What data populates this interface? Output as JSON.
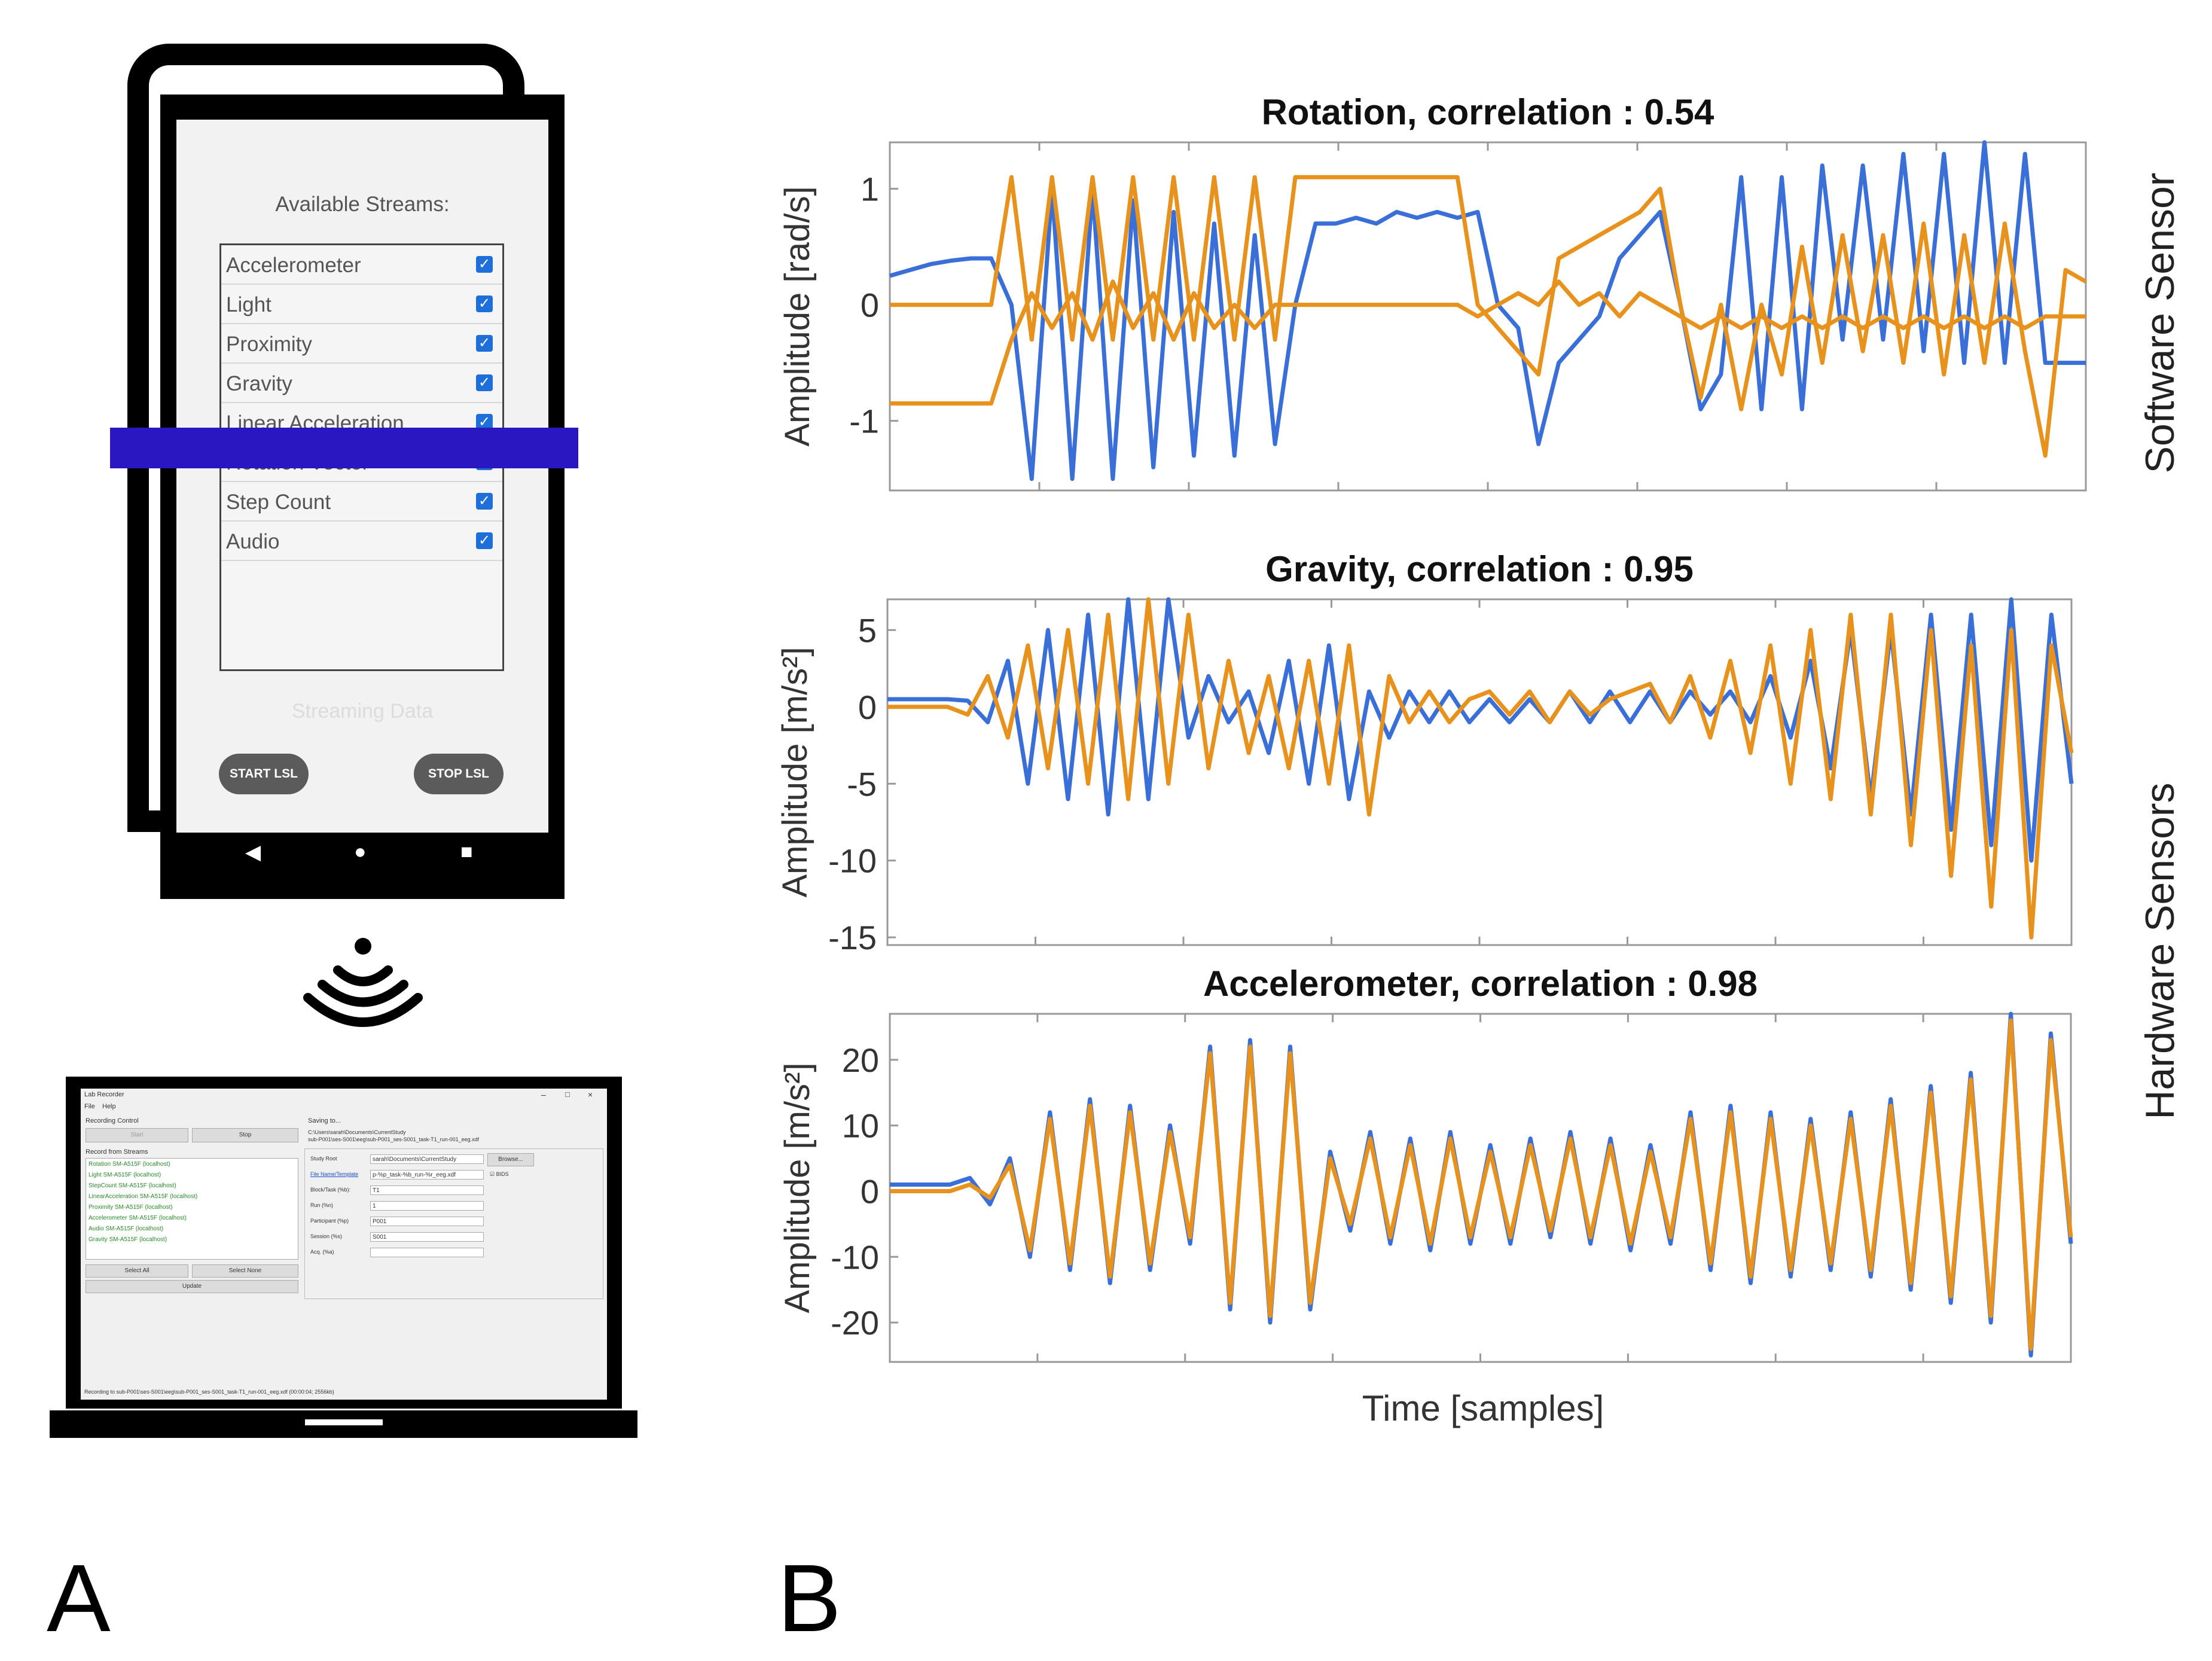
{
  "phone": {
    "title": "Available Streams:",
    "streams": [
      {
        "label": "Accelerometer",
        "checked": true
      },
      {
        "label": "Light",
        "checked": true
      },
      {
        "label": "Proximity",
        "checked": true
      },
      {
        "label": "Gravity",
        "checked": true
      },
      {
        "label": "Linear Acceleration",
        "checked": true
      },
      {
        "label": "Rotation Vector",
        "checked": true
      },
      {
        "label": "Step Count",
        "checked": true
      },
      {
        "label": "Audio",
        "checked": true
      }
    ],
    "status": "Streaming Data",
    "start_button": "START LSL",
    "stop_button": "STOP LSL",
    "nav_back": "◀",
    "nav_home": "●",
    "nav_recent": "■"
  },
  "lab_recorder": {
    "title": "Lab Recorder",
    "menu": [
      "File",
      "Help"
    ],
    "recording_control": "Recording Control",
    "start": "Start",
    "stop": "Stop",
    "record_from_streams": "Record from Streams",
    "streams": [
      "Rotation SM-A515F (localhost)",
      "Light SM-A515F (localhost)",
      "StepCount SM-A515F (localhost)",
      "LinearAcceleration SM-A515F (localhost)",
      "Proximity SM-A515F (localhost)",
      "Accelerometer SM-A515F (localhost)",
      "Audio SM-A515F (localhost)",
      "Gravity SM-A515F (localhost)"
    ],
    "select_all": "Select All",
    "select_none": "Select None",
    "update": "Update",
    "saving_to": "Saving to...",
    "save_path_1": "C:\\Users\\sarah\\Documents\\CurrentStudy",
    "save_path_2": "sub-P001\\ses-S001\\eeg\\sub-P001_ses-S001_task-T1_run-001_eeg.xdf",
    "study_root_label": "Study Root",
    "study_root_value": "sarah\\Documents\\CurrentStudy",
    "browse": "Browse...",
    "file_template_label": "File Name/Template",
    "file_template_value": "p-%p_task-%b_run-%r_eeg.xdf",
    "bids": "BIDS",
    "block_label": "Block/Task (%b):",
    "block_value": "T1",
    "run_label": "Run (%n)",
    "run_value": "1",
    "participant_label": "Participant (%p)",
    "participant_value": "P001",
    "session_label": "Session (%s)",
    "session_value": "S001",
    "acq_label": "Acq. (%a)",
    "acq_value": "",
    "status_bar": "Recording to sub-P001\\ses-S001\\eeg\\sub-P001_ses-S001_task-T1_run-001_eeg.xdf (00:00:04; 2556kb)"
  },
  "panel_labels": {
    "a": "A",
    "b": "B"
  },
  "side_labels": {
    "software": "Software Sensor",
    "hardware": "Hardware Sensors"
  },
  "xlabel": "Time [samples]",
  "colors": {
    "series_blue": "#3a6fd8",
    "series_orange": "#e8921e",
    "highlight_bar": "#2a17c2",
    "checkbox": "#1e6fd9"
  },
  "chart_data": [
    {
      "type": "line",
      "title": "Rotation, correlation : 0.54",
      "ylabel": "Amplitude [rad/s]",
      "xlabel": "",
      "ylim": [
        -1.6,
        1.4
      ],
      "yticks": [
        -1,
        0,
        1
      ],
      "series": [
        {
          "color": "#3a6fd8",
          "y": [
            0.25,
            0.3,
            0.35,
            0.38,
            0.4,
            0.4,
            0.0,
            -1.5,
            1.0,
            -1.5,
            1.0,
            -1.5,
            0.9,
            -1.4,
            0.8,
            -1.3,
            0.7,
            -1.3,
            0.6,
            -1.2,
            0.0,
            0.7,
            0.7,
            0.75,
            0.7,
            0.8,
            0.75,
            0.8,
            0.75,
            0.8,
            0.0,
            -0.2,
            -1.2,
            -0.5,
            -0.3,
            -0.1,
            0.4,
            0.6,
            0.8,
            0.0,
            -0.9,
            -0.6,
            1.1,
            -0.9,
            1.1,
            -0.9,
            1.2,
            -0.3,
            1.2,
            -0.3,
            1.3,
            -0.4,
            1.3,
            -0.5,
            1.4,
            -0.5,
            1.3,
            -0.5,
            -0.5,
            -0.5
          ]
        },
        {
          "color": "#e8921e",
          "y": [
            0.0,
            0.0,
            0.0,
            0.0,
            0.0,
            0.0,
            1.1,
            -0.3,
            1.1,
            -0.3,
            1.1,
            -0.3,
            1.1,
            -0.3,
            1.1,
            -0.3,
            1.1,
            -0.3,
            1.1,
            -0.3,
            1.1,
            1.1,
            1.1,
            1.1,
            1.1,
            1.1,
            1.1,
            1.1,
            1.1,
            0.0,
            -0.2,
            -0.4,
            -0.6,
            0.4,
            0.5,
            0.6,
            0.7,
            0.8,
            1.0,
            0.0,
            -0.8,
            0.0,
            -0.9,
            0.0,
            -0.6,
            0.5,
            -0.5,
            0.6,
            -0.4,
            0.6,
            -0.5,
            0.7,
            -0.6,
            0.6,
            -0.5,
            0.7,
            -0.4,
            -1.3,
            0.3,
            0.2
          ]
        },
        {
          "color": "#e8921e",
          "y": [
            -0.85,
            -0.85,
            -0.85,
            -0.85,
            -0.85,
            -0.85,
            -0.3,
            0.1,
            -0.2,
            0.1,
            -0.3,
            0.2,
            -0.2,
            0.1,
            -0.3,
            0.1,
            -0.2,
            0.0,
            -0.2,
            0.0,
            0.0,
            0.0,
            0.0,
            0.0,
            0.0,
            0.0,
            0.0,
            0.0,
            0.0,
            -0.1,
            0.0,
            0.1,
            0.0,
            0.2,
            0.0,
            0.1,
            -0.1,
            0.1,
            0.0,
            -0.1,
            -0.2,
            -0.1,
            -0.2,
            -0.1,
            -0.2,
            -0.1,
            -0.2,
            -0.1,
            -0.2,
            -0.1,
            -0.2,
            -0.1,
            -0.2,
            -0.1,
            -0.2,
            -0.1,
            -0.2,
            -0.1,
            -0.1,
            -0.1
          ]
        }
      ]
    },
    {
      "type": "line",
      "title": "Gravity, correlation : 0.95",
      "ylabel": "Amplitude [m/s²]",
      "xlabel": "",
      "ylim": [
        -15.5,
        7
      ],
      "yticks": [
        -15,
        -10,
        -5,
        0,
        5
      ],
      "series": [
        {
          "color": "#3a6fd8",
          "y": [
            0.5,
            0.5,
            0.5,
            0.5,
            0.4,
            -1,
            3,
            -5,
            5,
            -6,
            6,
            -7,
            7,
            -6,
            7,
            -2,
            2,
            -1,
            1,
            -3,
            3,
            -5,
            4,
            -6,
            1,
            -2,
            1,
            -1,
            1,
            -1,
            0.5,
            -1,
            0.5,
            -1,
            1,
            -1,
            1,
            -1,
            1,
            -1,
            1,
            -0.5,
            1,
            -1,
            2,
            -2,
            3,
            -4,
            5,
            -6,
            5,
            -7,
            6,
            -8,
            6,
            -9,
            7,
            -10,
            6,
            -5
          ]
        },
        {
          "color": "#e8921e",
          "y": [
            0,
            0,
            0,
            0,
            -0.5,
            2,
            -2,
            4,
            -4,
            5,
            -5,
            6,
            -6,
            7,
            -5,
            6,
            -4,
            3,
            -3,
            2,
            -4,
            3,
            -5,
            4,
            -7,
            2,
            -1,
            1,
            -1,
            0.5,
            1,
            -0.5,
            1,
            -1,
            1,
            -0.5,
            0.5,
            1,
            1.5,
            -1,
            2,
            -2,
            3,
            -3,
            4,
            -5,
            5,
            -6,
            6,
            -7,
            6,
            -9,
            5,
            -11,
            4,
            -13,
            5,
            -15,
            4,
            -3
          ]
        }
      ]
    },
    {
      "type": "line",
      "title": "Accelerometer, correlation : 0.98",
      "ylabel": "Amplitude [m/s²]",
      "xlabel": "Time [samples]",
      "ylim": [
        -26,
        27
      ],
      "yticks": [
        -20,
        -10,
        0,
        10,
        20
      ],
      "series": [
        {
          "color": "#3a6fd8",
          "y": [
            1,
            1,
            1,
            1,
            2,
            -2,
            5,
            -10,
            12,
            -12,
            14,
            -14,
            13,
            -12,
            10,
            -8,
            22,
            -18,
            23,
            -20,
            22,
            -18,
            6,
            -6,
            9,
            -8,
            8,
            -9,
            9,
            -8,
            7,
            -8,
            8,
            -7,
            9,
            -8,
            8,
            -9,
            7,
            -8,
            12,
            -12,
            13,
            -14,
            12,
            -13,
            11,
            -12,
            12,
            -13,
            14,
            -15,
            16,
            -17,
            18,
            -20,
            27,
            -25,
            24,
            -8
          ]
        },
        {
          "color": "#e8921e",
          "y": [
            0,
            0,
            0,
            0,
            1,
            -1,
            4,
            -9,
            11,
            -11,
            13,
            -13,
            12,
            -11,
            9,
            -7,
            21,
            -17,
            22,
            -19,
            21,
            -17,
            5,
            -5,
            8,
            -7,
            7,
            -8,
            8,
            -7,
            6,
            -7,
            7,
            -6,
            8,
            -7,
            7,
            -8,
            6,
            -7,
            11,
            -11,
            12,
            -13,
            11,
            -12,
            10,
            -11,
            11,
            -12,
            13,
            -14,
            15,
            -16,
            17,
            -19,
            26,
            -24,
            23,
            -7
          ]
        }
      ]
    }
  ]
}
